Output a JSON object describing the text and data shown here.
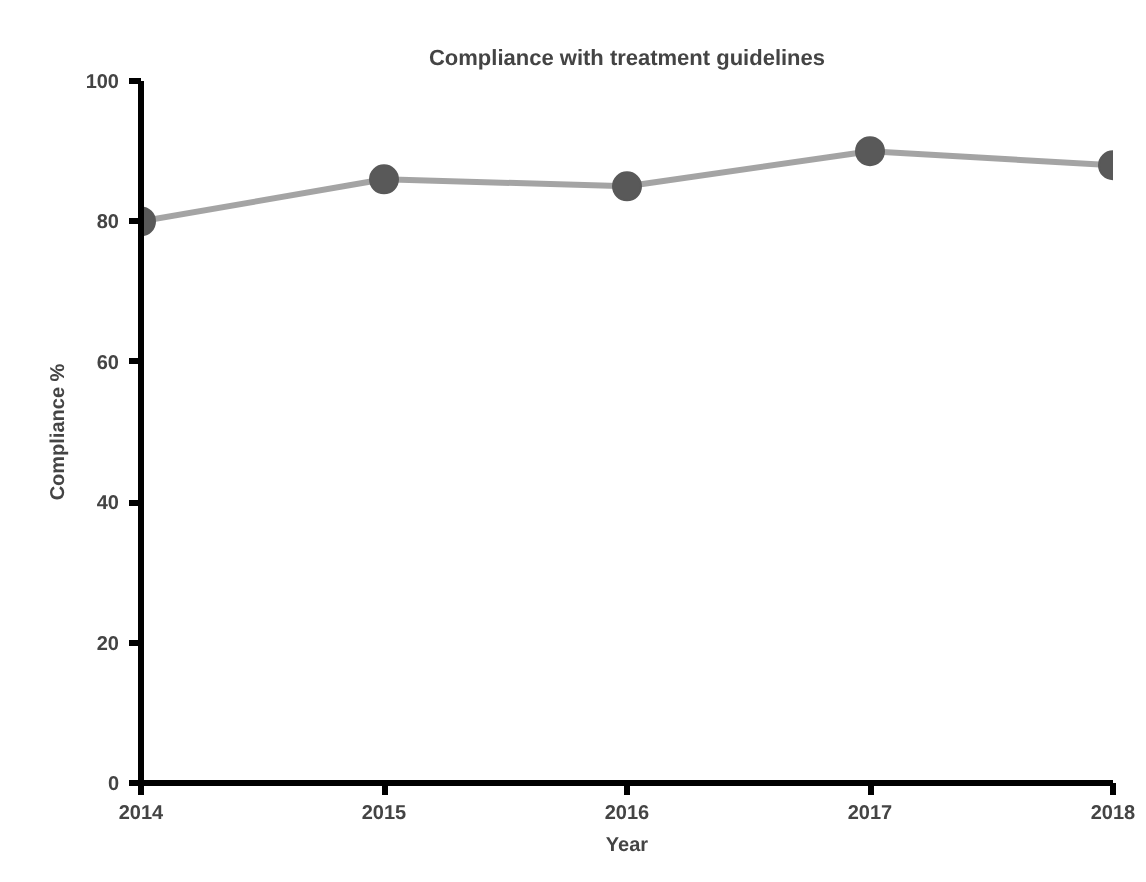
{
  "chart_data": {
    "type": "line",
    "title": "Compliance with treatment guidelines",
    "xlabel": "Year",
    "ylabel": "Compliance %",
    "x": [
      2014,
      2015,
      2016,
      2017,
      2018
    ],
    "series": [
      {
        "color": "#595959",
        "values": [
          80,
          86,
          85,
          90,
          88
        ]
      }
    ],
    "xlim": [
      2014,
      2018
    ],
    "ylim": [
      0,
      100
    ],
    "xticks": [
      2014,
      2015,
      2016,
      2017,
      2018
    ],
    "yticks": [
      0,
      20,
      40,
      60,
      80,
      100
    ],
    "grid": false,
    "marker": "circle",
    "line_style": "solid"
  }
}
